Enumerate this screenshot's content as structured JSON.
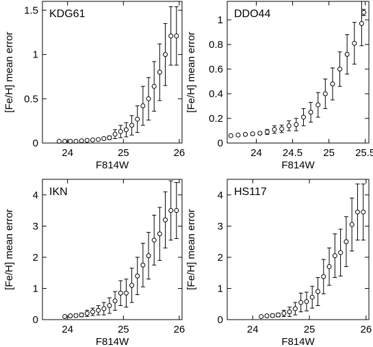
{
  "chart_data": [
    {
      "type": "scatter",
      "title": "KDG61",
      "xlabel": "F814W",
      "ylabel": "[Fe/H] mean error",
      "xlim": [
        23.55,
        26.05
      ],
      "ylim": [
        0,
        1.6
      ],
      "xticks": [
        24,
        25,
        26
      ],
      "yticks": [
        0,
        0.5,
        1,
        1.5
      ],
      "xticklabels": [
        "24",
        "25",
        "26"
      ],
      "yticklabels": [
        "0",
        "0.5",
        "1",
        "1.5"
      ],
      "x": [
        23.85,
        23.95,
        24.05,
        24.15,
        24.25,
        24.35,
        24.45,
        24.55,
        24.65,
        24.75,
        24.85,
        24.95,
        25.05,
        25.15,
        25.25,
        25.35,
        25.45,
        25.55,
        25.65,
        25.75,
        25.85,
        25.95
      ],
      "y": [
        0.02,
        0.02,
        0.02,
        0.02,
        0.025,
        0.03,
        0.035,
        0.04,
        0.05,
        0.06,
        0.1,
        0.13,
        0.15,
        0.2,
        0.27,
        0.42,
        0.5,
        0.64,
        0.8,
        1.0,
        1.21,
        1.21
      ],
      "yerr": [
        0.005,
        0.005,
        0.005,
        0.005,
        0.005,
        0.005,
        0.008,
        0.01,
        0.015,
        0.02,
        0.05,
        0.07,
        0.08,
        0.11,
        0.15,
        0.22,
        0.24,
        0.28,
        0.32,
        0.35,
        0.33,
        0.33
      ]
    },
    {
      "type": "scatter",
      "title": "DDO44",
      "xlabel": "F814W",
      "ylabel": "[Fe/H] mean error",
      "xlim": [
        23.6,
        25.55
      ],
      "ylim": [
        0,
        1.15
      ],
      "xticks": [
        24,
        24.5,
        25,
        25.5
      ],
      "yticks": [
        0,
        0.2,
        0.4,
        0.6,
        0.8,
        1
      ],
      "xticklabels": [
        "24",
        "24.5",
        "25",
        "25.5"
      ],
      "yticklabels": [
        "0",
        "0.2",
        "0.4",
        "0.6",
        "0.8",
        "1"
      ],
      "x": [
        23.65,
        23.75,
        23.85,
        23.95,
        24.05,
        24.15,
        24.25,
        24.35,
        24.45,
        24.55,
        24.65,
        24.75,
        24.85,
        24.95,
        25.05,
        25.15,
        25.25,
        25.35,
        25.45
      ],
      "y": [
        0.06,
        0.065,
        0.07,
        0.075,
        0.08,
        0.09,
        0.11,
        0.115,
        0.14,
        0.15,
        0.21,
        0.25,
        0.31,
        0.4,
        0.48,
        0.6,
        0.72,
        0.81,
        0.97
      ],
      "yerr": [
        0.01,
        0.01,
        0.01,
        0.01,
        0.01,
        0.02,
        0.03,
        0.03,
        0.04,
        0.05,
        0.07,
        0.08,
        0.1,
        0.12,
        0.13,
        0.14,
        0.16,
        0.17,
        0.18
      ],
      "inset_point": {
        "x": 25.48,
        "y": 1.06,
        "yerr": 0.025
      }
    },
    {
      "type": "scatter",
      "title": "IKN",
      "xlabel": "F814W",
      "ylabel": "[Fe/H] mean error",
      "xlim": [
        23.55,
        26.05
      ],
      "ylim": [
        0,
        4.5
      ],
      "xticks": [
        24,
        25,
        26
      ],
      "yticks": [
        0,
        1,
        2,
        3,
        4
      ],
      "xticklabels": [
        "24",
        "25",
        "26"
      ],
      "yticklabels": [
        "0",
        "1",
        "2",
        "3",
        "4"
      ],
      "x": [
        23.95,
        24.05,
        24.15,
        24.25,
        24.35,
        24.45,
        24.55,
        24.65,
        24.75,
        24.85,
        24.95,
        25.05,
        25.15,
        25.25,
        25.35,
        25.45,
        25.55,
        25.65,
        25.75,
        25.85,
        25.95
      ],
      "y": [
        0.1,
        0.12,
        0.13,
        0.15,
        0.2,
        0.25,
        0.3,
        0.35,
        0.45,
        0.6,
        0.85,
        0.85,
        1.1,
        1.4,
        1.75,
        2.05,
        2.55,
        2.75,
        3.2,
        3.5,
        3.5
      ],
      "yerr": [
        0.03,
        0.04,
        0.05,
        0.06,
        0.1,
        0.12,
        0.15,
        0.2,
        0.25,
        0.3,
        0.4,
        0.45,
        0.55,
        0.6,
        0.7,
        0.75,
        0.8,
        0.85,
        0.9,
        0.95,
        0.9
      ]
    },
    {
      "type": "scatter",
      "title": "HS117",
      "xlabel": "F814W",
      "ylabel": "[Fe/H] mean error",
      "xlim": [
        23.55,
        26.05
      ],
      "ylim": [
        0,
        4.5
      ],
      "xticks": [
        24,
        25,
        26
      ],
      "yticks": [
        0,
        1,
        2,
        3,
        4
      ],
      "xticklabels": [
        "24",
        "25",
        "26"
      ],
      "yticklabels": [
        "0",
        "1",
        "2",
        "3",
        "4"
      ],
      "x": [
        24.15,
        24.25,
        24.35,
        24.45,
        24.55,
        24.65,
        24.75,
        24.85,
        24.95,
        25.05,
        25.15,
        25.25,
        25.35,
        25.45,
        25.55,
        25.65,
        25.75,
        25.85,
        25.95
      ],
      "y": [
        0.1,
        0.12,
        0.13,
        0.15,
        0.2,
        0.25,
        0.35,
        0.55,
        0.58,
        0.72,
        0.9,
        1.38,
        1.7,
        2.05,
        2.15,
        2.5,
        3.05,
        3.45,
        3.45
      ],
      "yerr": [
        0.03,
        0.04,
        0.05,
        0.06,
        0.1,
        0.15,
        0.2,
        0.3,
        0.3,
        0.35,
        0.45,
        0.55,
        0.6,
        0.7,
        0.75,
        0.8,
        0.85,
        0.9,
        0.9
      ]
    }
  ]
}
